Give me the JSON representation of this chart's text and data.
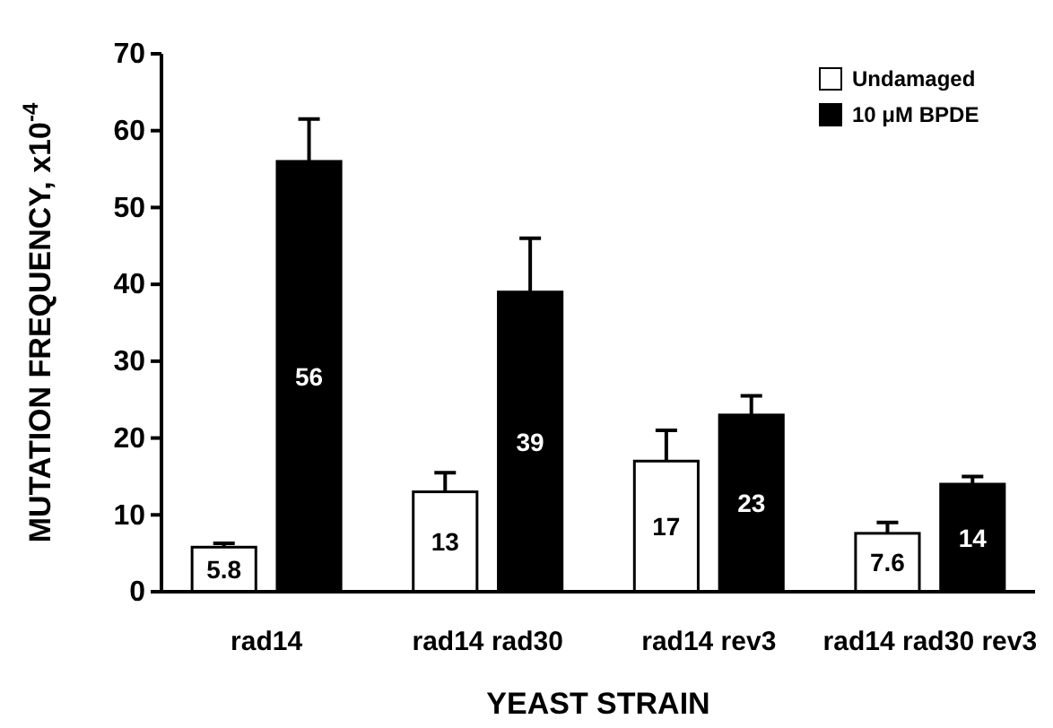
{
  "chart_data": {
    "type": "bar",
    "xlabel": "YEAST STRAIN",
    "ylabel": "MUTATION FREQUENCY, x10$^{-4}$",
    "categories": [
      "rad14",
      "rad14 rad30",
      "rad14 rev3",
      "rad14 rad30 rev3"
    ],
    "series": [
      {
        "name": "Undamaged",
        "color": "#ffffff",
        "values": [
          5.8,
          13,
          17,
          7.6
        ],
        "errors": [
          [
            5.8,
            6.3
          ],
          [
            13,
            15.5
          ],
          [
            17,
            21
          ],
          [
            7.6,
            9
          ]
        ]
      },
      {
        "name": "10 μM BPDE",
        "color": "#000000",
        "values": [
          56,
          39,
          23,
          14
        ],
        "errors": [
          [
            56,
            61.5
          ],
          [
            39,
            46
          ],
          [
            23,
            25.5
          ],
          [
            14,
            15
          ]
        ]
      }
    ],
    "ylim": [
      0,
      70
    ],
    "yticks": [
      0,
      10,
      20,
      30,
      40,
      50,
      60,
      70
    ],
    "data_labels": true,
    "legend": "top right",
    "grid": false
  }
}
